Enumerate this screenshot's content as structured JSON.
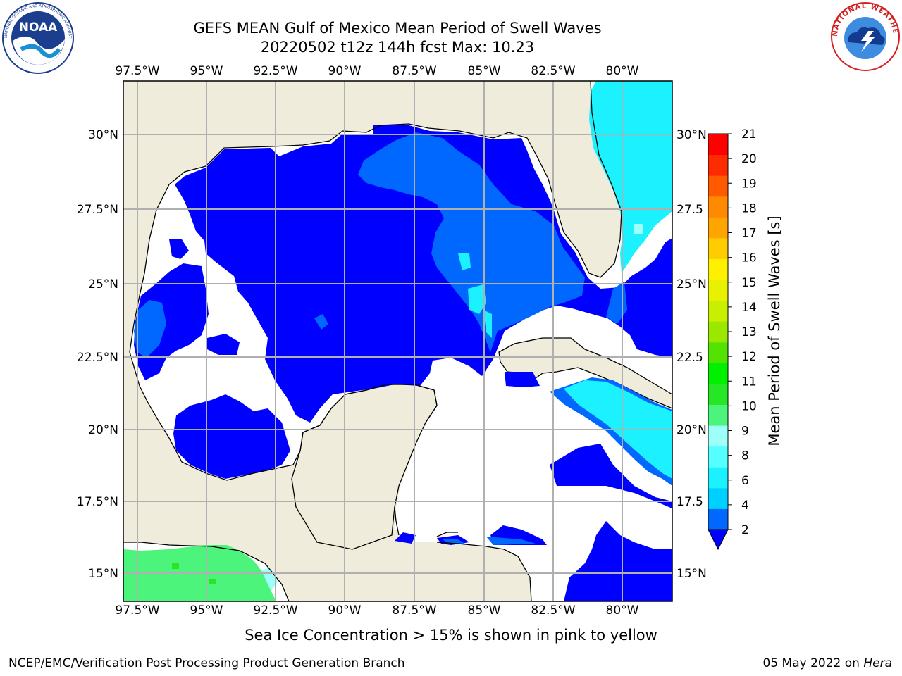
{
  "header": {
    "title_line1": "GEFS MEAN Gulf of Mexico Mean Period of Swell Waves",
    "title_line2": "20220502 t12z 144h fcst   Max: 10.23"
  },
  "logos": {
    "left": {
      "name": "NOAA",
      "text": "NOAA",
      "ring_text": "NATIONAL OCEANIC AND ATMOSPHERIC ADMINISTRATION · U.S. DEPARTMENT OF COMMERCE"
    },
    "right": {
      "name": "National Weather Service",
      "ring_text": "NATIONAL WEATHER SERVICE"
    }
  },
  "map": {
    "lon_labels": [
      "97.5°W",
      "95°W",
      "92.5°W",
      "90°W",
      "87.5°W",
      "85°W",
      "82.5°W",
      "80°W"
    ],
    "lat_labels_left": [
      "30°N",
      "27.5°N",
      "25°N",
      "22.5°N",
      "20°N",
      "17.5°N",
      "15°N"
    ],
    "lat_labels_right": [
      "30°N",
      "27.5",
      "25°N",
      "22.5",
      "20°N",
      "17.5",
      "15°N"
    ],
    "colors": {
      "land": "#efecdb",
      "no_data": "#ffffff",
      "grid": "#b0b0b0",
      "coast": "#000000"
    }
  },
  "colorbar": {
    "label": "Mean Period of Swell Waves [s]",
    "ticks": [
      "2",
      "4",
      "6",
      "8",
      "9",
      "10",
      "11",
      "12",
      "13",
      "14",
      "15",
      "16",
      "17",
      "18",
      "19",
      "20",
      "21"
    ],
    "colors": [
      "#0068ff",
      "#00d0ff",
      "#1cf2ff",
      "#55ffff",
      "#9cfff9",
      "#4cf47c",
      "#27e625",
      "#00f000",
      "#52e400",
      "#9ae800",
      "#c8ee00",
      "#e8f200",
      "#fff000",
      "#ffcc00",
      "#ffa500",
      "#ff8a00",
      "#ff5a00",
      "#ff2b00",
      "#ff0000"
    ],
    "extend_color": "#0000ff"
  },
  "footer": {
    "note": "Sea Ice Concentration > 15% is shown in pink to yellow",
    "credit": "NCEP/EMC/Verification Post Processing Product Generation Branch",
    "date": "05 May 2022 on ",
    "machine": "Hera"
  }
}
